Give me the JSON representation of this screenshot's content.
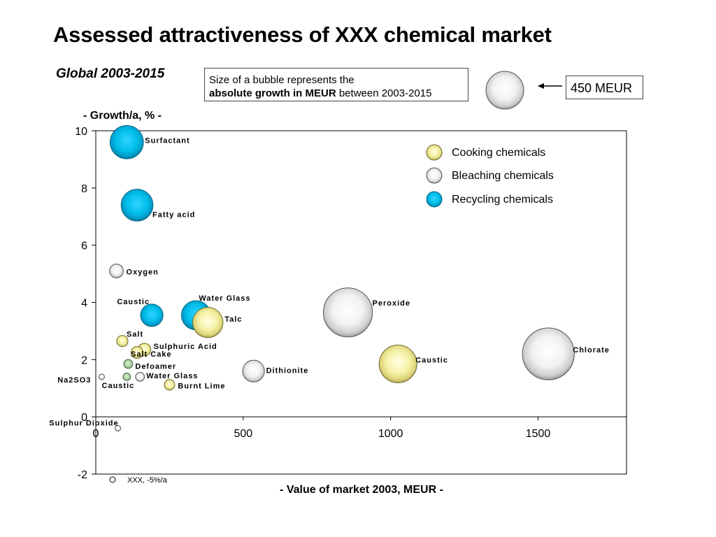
{
  "title": "Assessed attractiveness of XXX chemical market",
  "subtitle": "Global 2003-2015",
  "size_note": {
    "line1": "Size of a bubble represents the",
    "bold": "absolute growth in MEUR",
    "rest": " between 2003-2015"
  },
  "reference_bubble_label": "450 MEUR",
  "colors": {
    "cooking": "#f7f3a8",
    "bleaching": "#ededed",
    "recycling": "#00bfef",
    "small_green": "#a9d3a2"
  },
  "chart_data": {
    "type": "scatter",
    "xlabel": "- Value of market 2003, MEUR -",
    "ylabel": "- Growth/a, % -",
    "xlim": [
      0,
      1800
    ],
    "ylim": [
      -2,
      10
    ],
    "x_ticks": [
      "0",
      "500",
      "1000",
      "1500"
    ],
    "x_tick_values": [
      0,
      500,
      1000,
      1500
    ],
    "y_ticks": [
      "10",
      "8",
      "6",
      "4",
      "2",
      "0",
      "-2"
    ],
    "y_tick_values": [
      10,
      8,
      6,
      4,
      2,
      0,
      -2
    ],
    "legend": [
      {
        "label": "Cooking chemicals",
        "category": "cooking"
      },
      {
        "label": "Bleaching chemicals",
        "category": "bleaching"
      },
      {
        "label": "Recycling chemicals",
        "category": "recycling"
      }
    ],
    "legend_position": "top-right",
    "reference_bubble": {
      "growth_meur": 450
    },
    "points": [
      {
        "label": "Surfactant",
        "x": 105,
        "y": 9.6,
        "size": 350,
        "category": "recycling"
      },
      {
        "label": "Fatty acid",
        "x": 140,
        "y": 7.4,
        "size": 320,
        "category": "recycling"
      },
      {
        "label": "Oxygen",
        "x": 70,
        "y": 5.1,
        "size": 60,
        "category": "bleaching"
      },
      {
        "label": "Caustic",
        "x": 190,
        "y": 3.55,
        "size": 160,
        "category": "recycling"
      },
      {
        "label": "Water Glass",
        "x": 340,
        "y": 3.55,
        "size": 270,
        "category": "recycling"
      },
      {
        "label": "Talc",
        "x": 380,
        "y": 3.3,
        "size": 290,
        "category": "cooking"
      },
      {
        "label": "Peroxide",
        "x": 855,
        "y": 3.65,
        "size": 760,
        "category": "bleaching"
      },
      {
        "label": "Salt",
        "x": 90,
        "y": 2.65,
        "size": 40,
        "category": "cooking"
      },
      {
        "label": "Sulphuric Acid",
        "x": 165,
        "y": 2.35,
        "size": 50,
        "category": "cooking"
      },
      {
        "label": "Salt Cake",
        "x": 140,
        "y": 2.25,
        "size": 45,
        "category": "cooking"
      },
      {
        "label": "Defoamer",
        "x": 110,
        "y": 1.85,
        "size": 25,
        "category": "small_green"
      },
      {
        "label": "Na2SO3",
        "x": 20,
        "y": 1.4,
        "size": 5,
        "category": "bleaching"
      },
      {
        "label": "Caustic",
        "x": 105,
        "y": 1.4,
        "size": 18,
        "category": "small_green"
      },
      {
        "label": "Water Glass",
        "x": 150,
        "y": 1.4,
        "size": 25,
        "category": "bleaching"
      },
      {
        "label": "Burnt Lime",
        "x": 250,
        "y": 1.12,
        "size": 35,
        "category": "cooking"
      },
      {
        "label": "Dithionite",
        "x": 535,
        "y": 1.6,
        "size": 150,
        "category": "bleaching"
      },
      {
        "label": "Caustic",
        "x": 1025,
        "y": 1.85,
        "size": 450,
        "category": "cooking"
      },
      {
        "label": "Chlorate",
        "x": 1535,
        "y": 2.2,
        "size": 850,
        "category": "bleaching"
      },
      {
        "label": "Sulphur Dioxide",
        "x": 75,
        "y": -0.4,
        "size": 5,
        "category": "bleaching"
      }
    ],
    "annotation": "XXX, -5%/a"
  }
}
